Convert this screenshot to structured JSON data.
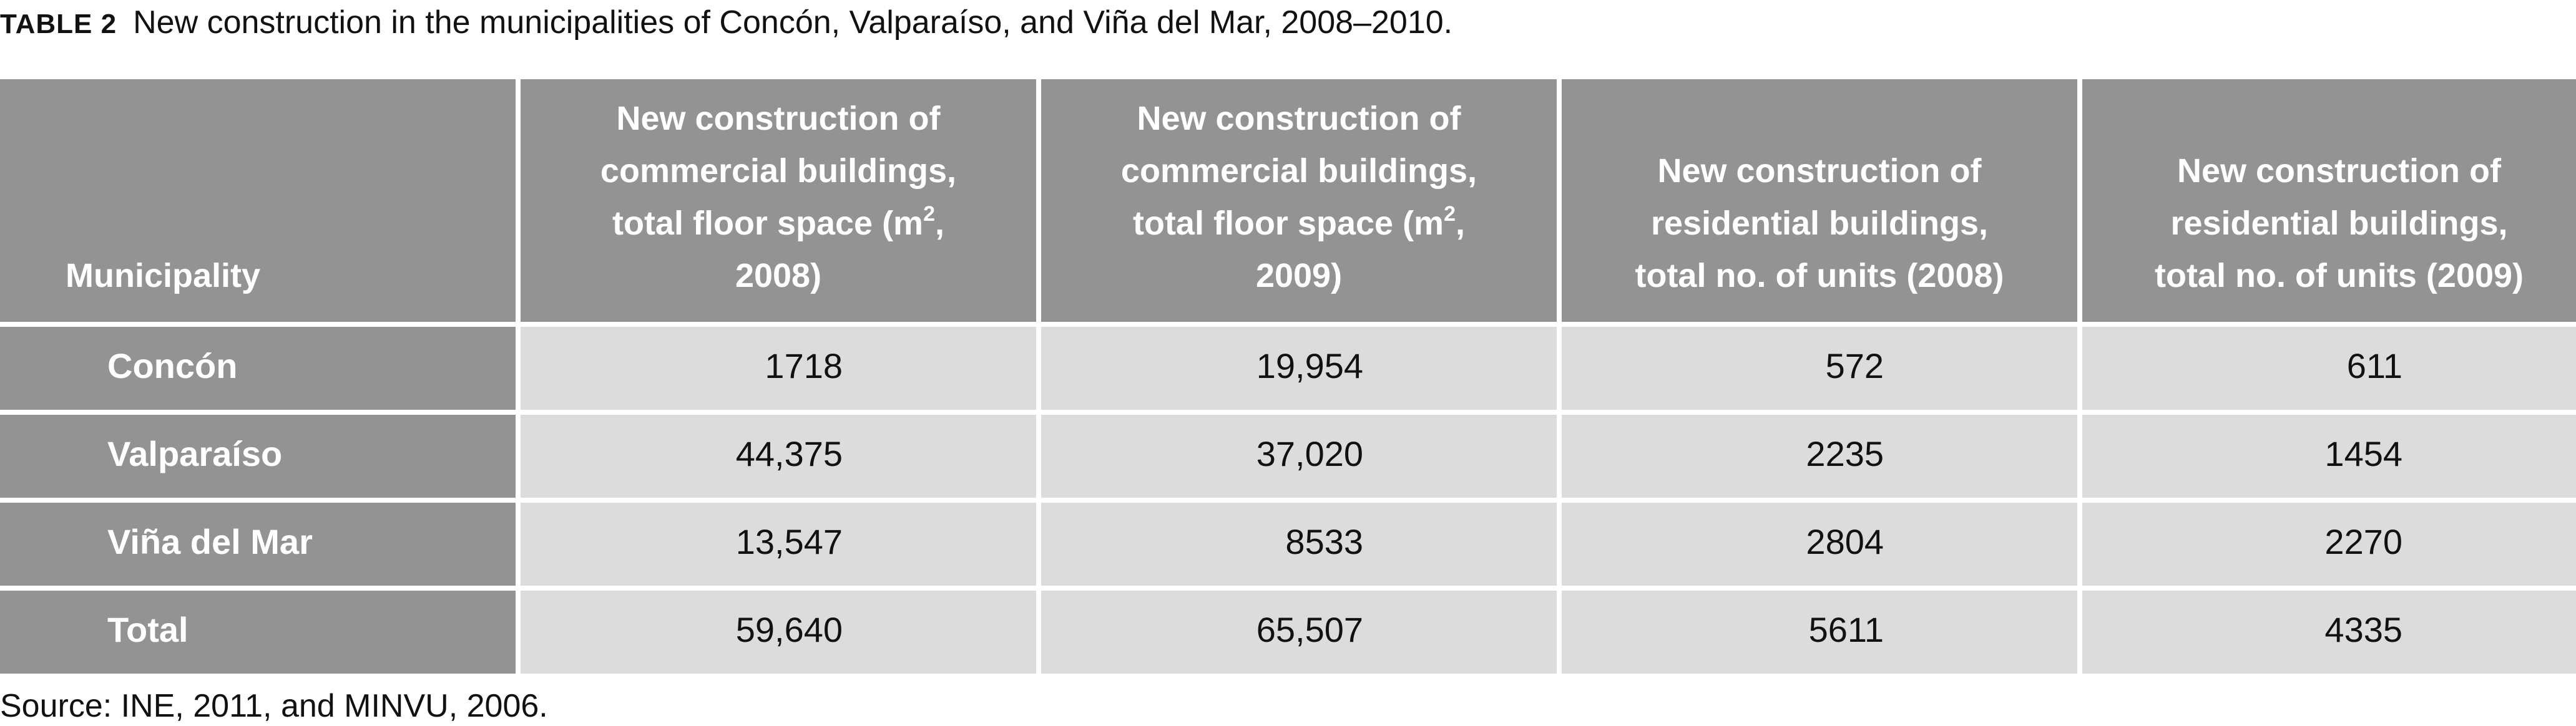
{
  "caption": {
    "label": "TABLE 2",
    "text": "New construction in the municipalities of Concón, Valparaíso, and Viña del Mar, 2008–2010."
  },
  "table": {
    "headers": [
      {
        "text": "Municipality"
      },
      {
        "text": "New construction of commercial buildings, total floor space (m",
        "sup": "2",
        "suffix": ", 2008)"
      },
      {
        "text": "New construction of commercial buildings, total floor space (m",
        "sup": "2",
        "suffix": ", 2009)"
      },
      {
        "text": "New construction of residential buildings, total no. of units (2008)"
      },
      {
        "text": "New construction of residential buildings, total no. of units (2009)"
      }
    ],
    "rows": [
      {
        "municipality": "Concón",
        "values": [
          "1718",
          "19,954",
          "572",
          "611"
        ]
      },
      {
        "municipality": "Valparaíso",
        "values": [
          "44,375",
          "37,020",
          "2235",
          "1454"
        ]
      },
      {
        "municipality": "Viña del Mar",
        "values": [
          "13,547",
          "8533",
          "2804",
          "2270"
        ]
      },
      {
        "municipality": "Total",
        "values": [
          "59,640",
          "65,507",
          "5611",
          "4335"
        ]
      }
    ]
  },
  "source": "Source: INE, 2011, and MINVU, 2006.",
  "colors": {
    "header_bg": "#939393",
    "cell_bg": "#dcdcdc",
    "header_text": "#ffffff"
  }
}
